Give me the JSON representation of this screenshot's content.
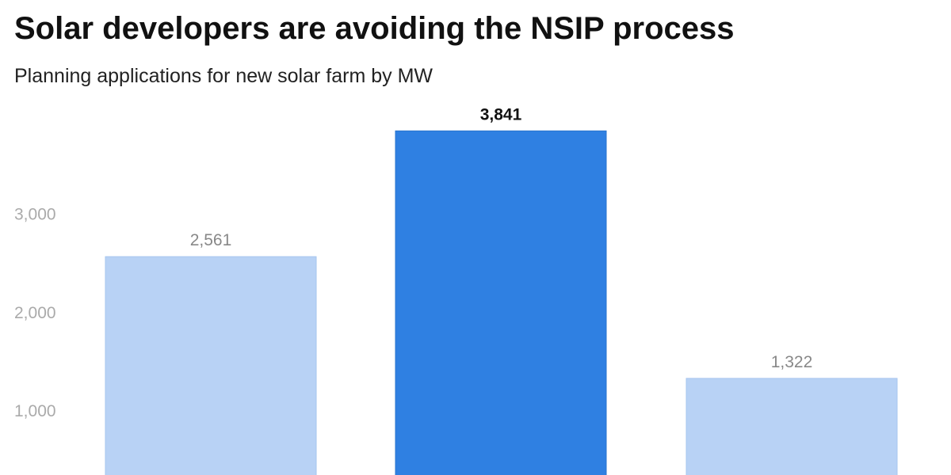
{
  "header": {
    "title": "Solar developers are avoiding the NSIP process",
    "subtitle": "Planning applications for new solar farm by MW"
  },
  "colors": {
    "bar": "#b8d2f5",
    "bar_highlight": "#2f80e2",
    "bar_label": "#888888",
    "bar_label_highlight": "#111111",
    "tick_label": "#aaaaaa"
  },
  "chart_data": {
    "type": "bar",
    "title": "Solar developers are avoiding the NSIP process",
    "subtitle": "Planning applications for new solar farm by MW",
    "categories": [
      "",
      "",
      ""
    ],
    "values": [
      2561,
      3841,
      1322
    ],
    "value_labels": [
      "2,561",
      "3,841",
      "1,322"
    ],
    "highlight_index": 1,
    "xlabel": "",
    "ylabel": "",
    "yticks": [
      1000,
      2000,
      3000
    ],
    "ytick_labels": [
      "1,000",
      "2,000",
      "3,000"
    ],
    "grid": false
  }
}
